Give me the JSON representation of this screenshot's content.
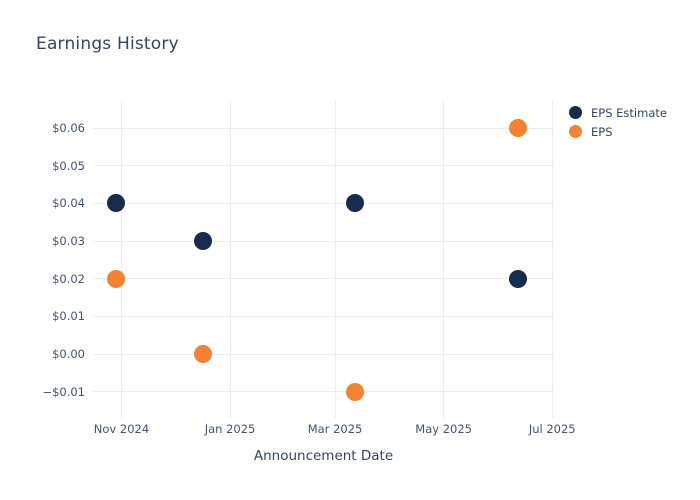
{
  "chart": {
    "title": "Earnings History",
    "x_axis_title": "Announcement Date"
  },
  "chart_data": {
    "type": "scatter",
    "title": "Earnings History",
    "xlabel": "Announcement Date",
    "ylabel": "",
    "x": [
      "2024-10-29",
      "2024-12-17",
      "2025-03-12",
      "2025-06-12"
    ],
    "series": [
      {
        "name": "EPS Estimate",
        "color": "#172b4d",
        "values": [
          0.04,
          0.03,
          0.04,
          0.02
        ]
      },
      {
        "name": "EPS",
        "color": "#f28334",
        "values": [
          0.02,
          0.0,
          -0.01,
          0.06
        ]
      }
    ],
    "x_ticks": [
      {
        "label": "Nov 2024",
        "date": "2024-11-01"
      },
      {
        "label": "Jan 2025",
        "date": "2025-01-01"
      },
      {
        "label": "Mar 2025",
        "date": "2025-03-01"
      },
      {
        "label": "May 2025",
        "date": "2025-05-01"
      },
      {
        "label": "Jul 2025",
        "date": "2025-07-01"
      }
    ],
    "y_ticks": [
      {
        "label": "$0.06",
        "value": 0.06
      },
      {
        "label": "$0.05",
        "value": 0.05
      },
      {
        "label": "$0.04",
        "value": 0.04
      },
      {
        "label": "$0.03",
        "value": 0.03
      },
      {
        "label": "$0.02",
        "value": 0.02
      },
      {
        "label": "$0.01",
        "value": 0.01
      },
      {
        "label": "$0.00",
        "value": 0.0
      },
      {
        "label": "−$0.01",
        "value": -0.01
      }
    ],
    "x_range": [
      "2024-10-16",
      "2025-07-02"
    ],
    "y_range": [
      -0.017,
      0.0675
    ],
    "grid": true,
    "legend_position": "top-right",
    "marker_size_px": 18,
    "colors": {
      "grid": "#e8ecf5",
      "tick_text": "#425370",
      "title_text": "#344563",
      "background": "#ffffff"
    }
  }
}
